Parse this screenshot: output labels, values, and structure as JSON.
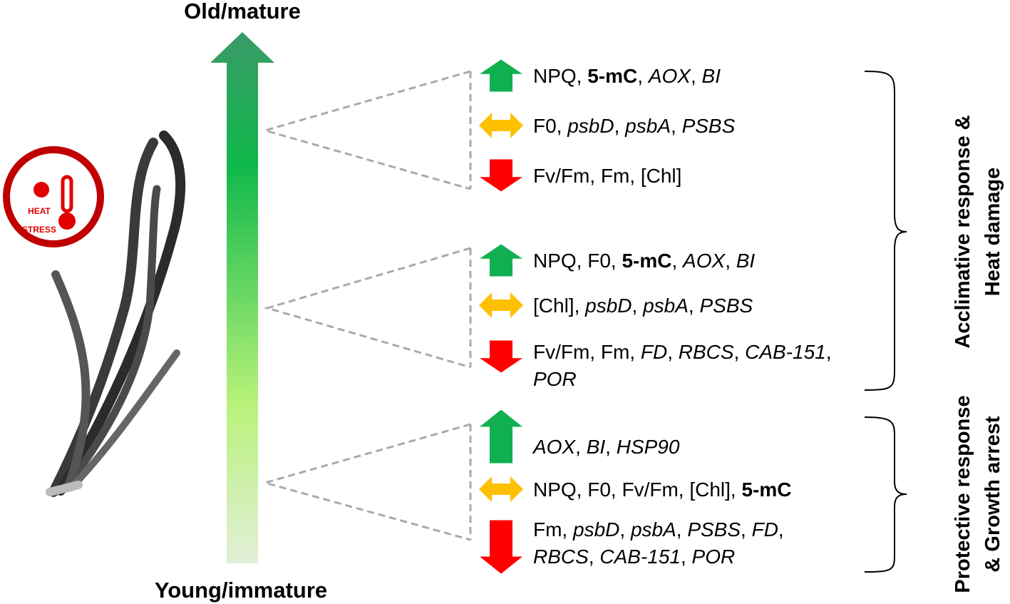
{
  "labels": {
    "top": "Old/mature",
    "bottom": "Young/immature"
  },
  "icon": {
    "lines": [
      "HEAT",
      "STRESS"
    ]
  },
  "groups": [
    {
      "rows": [
        {
          "arrow": "up",
          "lines": [
            [
              {
                "text": "NPQ, "
              },
              {
                "text": "5-mC",
                "style": "bold"
              },
              {
                "text": ", "
              },
              {
                "text": "AOX",
                "style": "italic"
              },
              {
                "text": ", "
              },
              {
                "text": "BI",
                "style": "italic"
              }
            ]
          ]
        },
        {
          "arrow": "both",
          "lines": [
            [
              {
                "text": "F0, "
              },
              {
                "text": "psbD",
                "style": "italic"
              },
              {
                "text": ", "
              },
              {
                "text": "psbA",
                "style": "italic"
              },
              {
                "text": ", "
              },
              {
                "text": "PSBS",
                "style": "italic"
              }
            ]
          ]
        },
        {
          "arrow": "down",
          "lines": [
            [
              {
                "text": "Fv/Fm, Fm, [Chl]"
              }
            ]
          ]
        }
      ]
    },
    {
      "rows": [
        {
          "arrow": "up",
          "lines": [
            [
              {
                "text": "NPQ, F0, "
              },
              {
                "text": "5-mC",
                "style": "bold"
              },
              {
                "text": ", "
              },
              {
                "text": "AOX",
                "style": "italic"
              },
              {
                "text": ", "
              },
              {
                "text": "BI",
                "style": "italic"
              }
            ]
          ]
        },
        {
          "arrow": "both",
          "lines": [
            [
              {
                "text": "[Chl], "
              },
              {
                "text": "psbD",
                "style": "italic"
              },
              {
                "text": ", "
              },
              {
                "text": "psbA",
                "style": "italic"
              },
              {
                "text": ", "
              },
              {
                "text": "PSBS",
                "style": "italic"
              }
            ]
          ]
        },
        {
          "arrow": "down",
          "lines": [
            [
              {
                "text": "Fv/Fm, Fm, "
              },
              {
                "text": "FD",
                "style": "italic"
              },
              {
                "text": ", "
              },
              {
                "text": "RBCS",
                "style": "italic"
              },
              {
                "text": ", "
              },
              {
                "text": "CAB-151",
                "style": "italic"
              },
              {
                "text": ","
              }
            ],
            [
              {
                "text": "POR",
                "style": "italic"
              }
            ]
          ]
        }
      ]
    },
    {
      "rows": [
        {
          "arrow": "up",
          "lines": [
            [
              {
                "text": "AOX",
                "style": "italic"
              },
              {
                "text": ", "
              },
              {
                "text": "BI",
                "style": "italic"
              },
              {
                "text": ", "
              },
              {
                "text": "HSP90",
                "style": "italic"
              }
            ]
          ]
        },
        {
          "arrow": "both",
          "lines": [
            [
              {
                "text": "NPQ, F0, Fv/Fm, [Chl], "
              },
              {
                "text": "5-mC",
                "style": "bold"
              }
            ]
          ]
        },
        {
          "arrow": "down",
          "lines": [
            [
              {
                "text": "Fm, "
              },
              {
                "text": "psbD",
                "style": "italic"
              },
              {
                "text": ", "
              },
              {
                "text": "psbA",
                "style": "italic"
              },
              {
                "text": ", "
              },
              {
                "text": "PSBS",
                "style": "italic"
              },
              {
                "text": ", "
              },
              {
                "text": "FD",
                "style": "italic"
              },
              {
                "text": ","
              }
            ],
            [
              {
                "text": "RBCS",
                "style": "italic"
              },
              {
                "text": ", "
              },
              {
                "text": "CAB-151",
                "style": "italic"
              },
              {
                "text": ", "
              },
              {
                "text": "POR",
                "style": "italic"
              }
            ]
          ]
        }
      ]
    }
  ],
  "brackets": [
    {
      "lines": [
        "Acclimative response &",
        "Heat damage"
      ]
    },
    {
      "lines": [
        "Protective response",
        "& Growth arrest"
      ]
    }
  ]
}
